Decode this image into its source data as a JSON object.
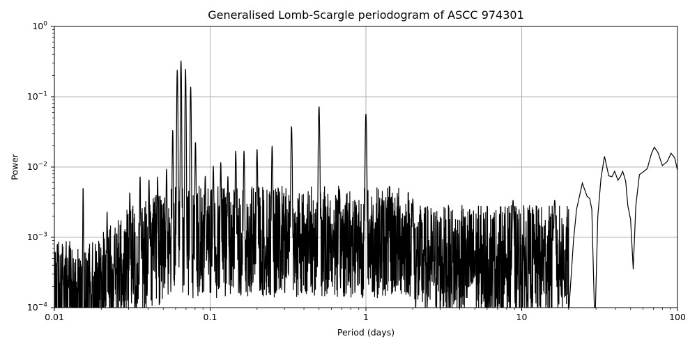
{
  "chart_data": {
    "type": "line",
    "title": "Generalised Lomb-Scargle periodogram of ASCC 974301",
    "xlabel": "Period (days)",
    "ylabel": "Power",
    "xscale": "log",
    "yscale": "log",
    "xlim": [
      0.01,
      100
    ],
    "ylim": [
      0.0001,
      1
    ],
    "grid": true,
    "xticks": [
      {
        "value": 0.01,
        "label": "0.01"
      },
      {
        "value": 0.1,
        "label": "0.1"
      },
      {
        "value": 1,
        "label": "1"
      },
      {
        "value": 10,
        "label": "10"
      },
      {
        "value": 100,
        "label": "100"
      }
    ],
    "yticks": [
      {
        "value": 0.0001,
        "base": "10",
        "exp": "−4"
      },
      {
        "value": 0.001,
        "base": "10",
        "exp": "−3"
      },
      {
        "value": 0.01,
        "base": "10",
        "exp": "−2"
      },
      {
        "value": 0.1,
        "base": "10",
        "exp": "−1"
      },
      {
        "value": 1,
        "base": "10",
        "exp": "0"
      }
    ],
    "line_color": "#000000",
    "grid_color": "#b0b0b0",
    "peaks": [
      {
        "period": 0.0153,
        "power": 0.0053
      },
      {
        "period": 0.0218,
        "power": 0.0024
      },
      {
        "period": 0.0305,
        "power": 0.0045
      },
      {
        "period": 0.0355,
        "power": 0.0075
      },
      {
        "period": 0.0405,
        "power": 0.0068
      },
      {
        "period": 0.046,
        "power": 0.0073
      },
      {
        "period": 0.0525,
        "power": 0.0095
      },
      {
        "period": 0.0575,
        "power": 0.034
      },
      {
        "period": 0.0615,
        "power": 0.245
      },
      {
        "period": 0.065,
        "power": 0.33
      },
      {
        "period": 0.0695,
        "power": 0.25
      },
      {
        "period": 0.075,
        "power": 0.14
      },
      {
        "period": 0.0805,
        "power": 0.023
      },
      {
        "period": 0.093,
        "power": 0.0075
      },
      {
        "period": 0.1048,
        "power": 0.0105
      },
      {
        "period": 0.117,
        "power": 0.0118
      },
      {
        "period": 0.13,
        "power": 0.0075
      },
      {
        "period": 0.146,
        "power": 0.017
      },
      {
        "period": 0.165,
        "power": 0.017
      },
      {
        "period": 0.2,
        "power": 0.018
      },
      {
        "period": 0.25,
        "power": 0.02
      },
      {
        "period": 0.333,
        "power": 0.038
      },
      {
        "period": 0.5,
        "power": 0.073
      },
      {
        "period": 1.0,
        "power": 0.057
      },
      {
        "period": 2.0,
        "power": 0.0035
      },
      {
        "period": 8.8,
        "power": 0.0034
      },
      {
        "period": 16.3,
        "power": 0.0034
      },
      {
        "period": 24.5,
        "power": 0.006
      },
      {
        "period": 34.0,
        "power": 0.014
      },
      {
        "period": 39.5,
        "power": 0.0085
      },
      {
        "period": 44.5,
        "power": 0.0085
      },
      {
        "period": 52.0,
        "power": 0.00035
      },
      {
        "period": 71.0,
        "power": 0.019
      },
      {
        "period": 91.0,
        "power": 0.0155
      }
    ],
    "tail_curve": [
      [
        20,
        8e-05
      ],
      [
        21.5,
        0.0009
      ],
      [
        22.5,
        0.0025
      ],
      [
        24.5,
        0.0059
      ],
      [
        26.3,
        0.0038
      ],
      [
        27.3,
        0.0036
      ],
      [
        28.2,
        0.0025
      ],
      [
        29.5,
        5e-05
      ],
      [
        30.8,
        0.002
      ],
      [
        32.3,
        0.007
      ],
      [
        34.0,
        0.0142
      ],
      [
        36.2,
        0.0075
      ],
      [
        38.0,
        0.0073
      ],
      [
        39.5,
        0.0087
      ],
      [
        41.5,
        0.0065
      ],
      [
        43.0,
        0.0073
      ],
      [
        44.5,
        0.0087
      ],
      [
        46.5,
        0.0063
      ],
      [
        48.0,
        0.0028
      ],
      [
        50.0,
        0.0018
      ],
      [
        52.0,
        0.00035
      ],
      [
        54.0,
        0.0028
      ],
      [
        57.0,
        0.0078
      ],
      [
        61.0,
        0.0087
      ],
      [
        64.0,
        0.0095
      ],
      [
        68.0,
        0.0155
      ],
      [
        71.0,
        0.0192
      ],
      [
        75.0,
        0.016
      ],
      [
        80.0,
        0.0105
      ],
      [
        86.0,
        0.012
      ],
      [
        91.0,
        0.0157
      ],
      [
        96.0,
        0.0135
      ],
      [
        100.0,
        0.009
      ]
    ]
  }
}
